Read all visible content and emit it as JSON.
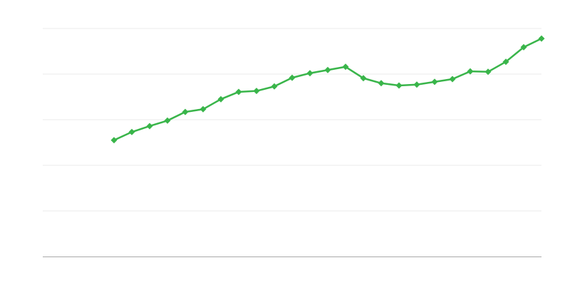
{
  "chart_data": {
    "type": "line",
    "title": "",
    "xlabel": "",
    "ylabel": "",
    "xlim": [
      0,
      28
    ],
    "ylim": [
      0,
      5
    ],
    "grid": true,
    "gridline_values": [
      1,
      2,
      3,
      4,
      5
    ],
    "legend": "none",
    "series": [
      {
        "color": "#39b54a",
        "marker": "diamond",
        "x": [
          4,
          5,
          6,
          7,
          8,
          9,
          10,
          11,
          12,
          13,
          14,
          15,
          16,
          17,
          18,
          19,
          20,
          21,
          22,
          23,
          24,
          25,
          26,
          27,
          28
        ],
        "values": [
          2.55,
          2.73,
          2.86,
          2.98,
          3.17,
          3.23,
          3.45,
          3.61,
          3.63,
          3.73,
          3.92,
          4.02,
          4.09,
          4.16,
          3.91,
          3.8,
          3.75,
          3.77,
          3.83,
          3.89,
          4.06,
          4.05,
          4.27,
          4.59,
          4.78
        ]
      }
    ],
    "colors": {
      "grid": "#ebebeb",
      "axis": "#aaaaaa"
    }
  }
}
